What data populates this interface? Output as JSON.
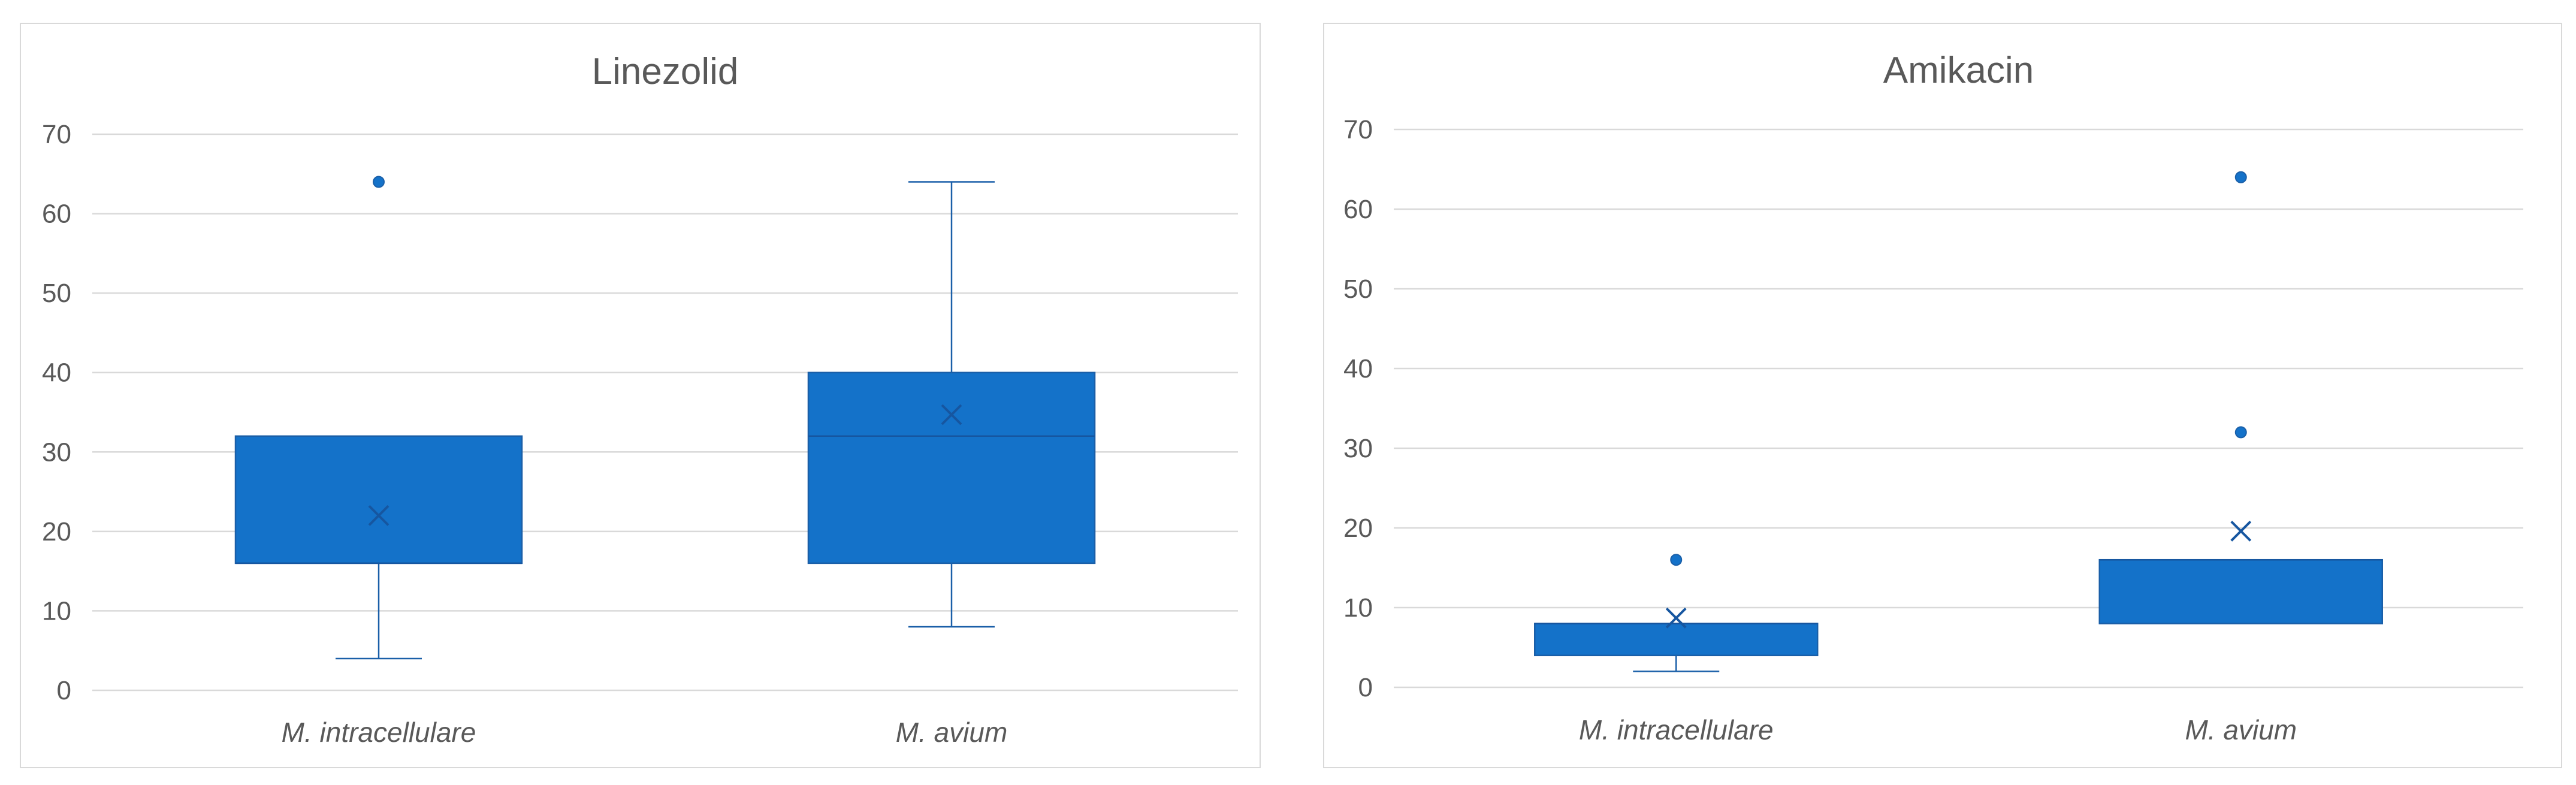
{
  "chart_data": [
    {
      "type": "box",
      "title": "Linezolid",
      "xlabel": "",
      "ylabel": "",
      "ylim": [
        0,
        70
      ],
      "yticks": [
        "0",
        "10",
        "20",
        "30",
        "40",
        "50",
        "60",
        "70"
      ],
      "grid": true,
      "legend": "none",
      "color": "#1472c9",
      "categories": [
        "M. intracellulare",
        "M. avium"
      ],
      "boxes": [
        {
          "whisker_low": 4,
          "q1": 16,
          "median": 16,
          "q3": 32,
          "whisker_high": 32,
          "mean": 22,
          "outliers": [
            64
          ]
        },
        {
          "whisker_low": 8,
          "q1": 16,
          "median": 32,
          "q3": 40,
          "whisker_high": 64,
          "mean": 34.7,
          "outliers": []
        }
      ]
    },
    {
      "type": "box",
      "title": "Amikacin",
      "xlabel": "",
      "ylabel": "",
      "ylim": [
        0,
        70
      ],
      "yticks": [
        "0",
        "10",
        "20",
        "30",
        "40",
        "50",
        "60",
        "70"
      ],
      "grid": true,
      "legend": "none",
      "color": "#1472c9",
      "categories": [
        "M. intracellulare",
        "M. avium"
      ],
      "boxes": [
        {
          "whisker_low": 2,
          "q1": 4,
          "median": 8,
          "q3": 8,
          "whisker_high": 8,
          "mean": 8.7,
          "outliers": [
            16
          ]
        },
        {
          "whisker_low": 8,
          "q1": 8,
          "median": 16,
          "q3": 16,
          "whisker_high": 16,
          "mean": 19.6,
          "outliers": [
            32,
            64
          ]
        }
      ]
    }
  ]
}
